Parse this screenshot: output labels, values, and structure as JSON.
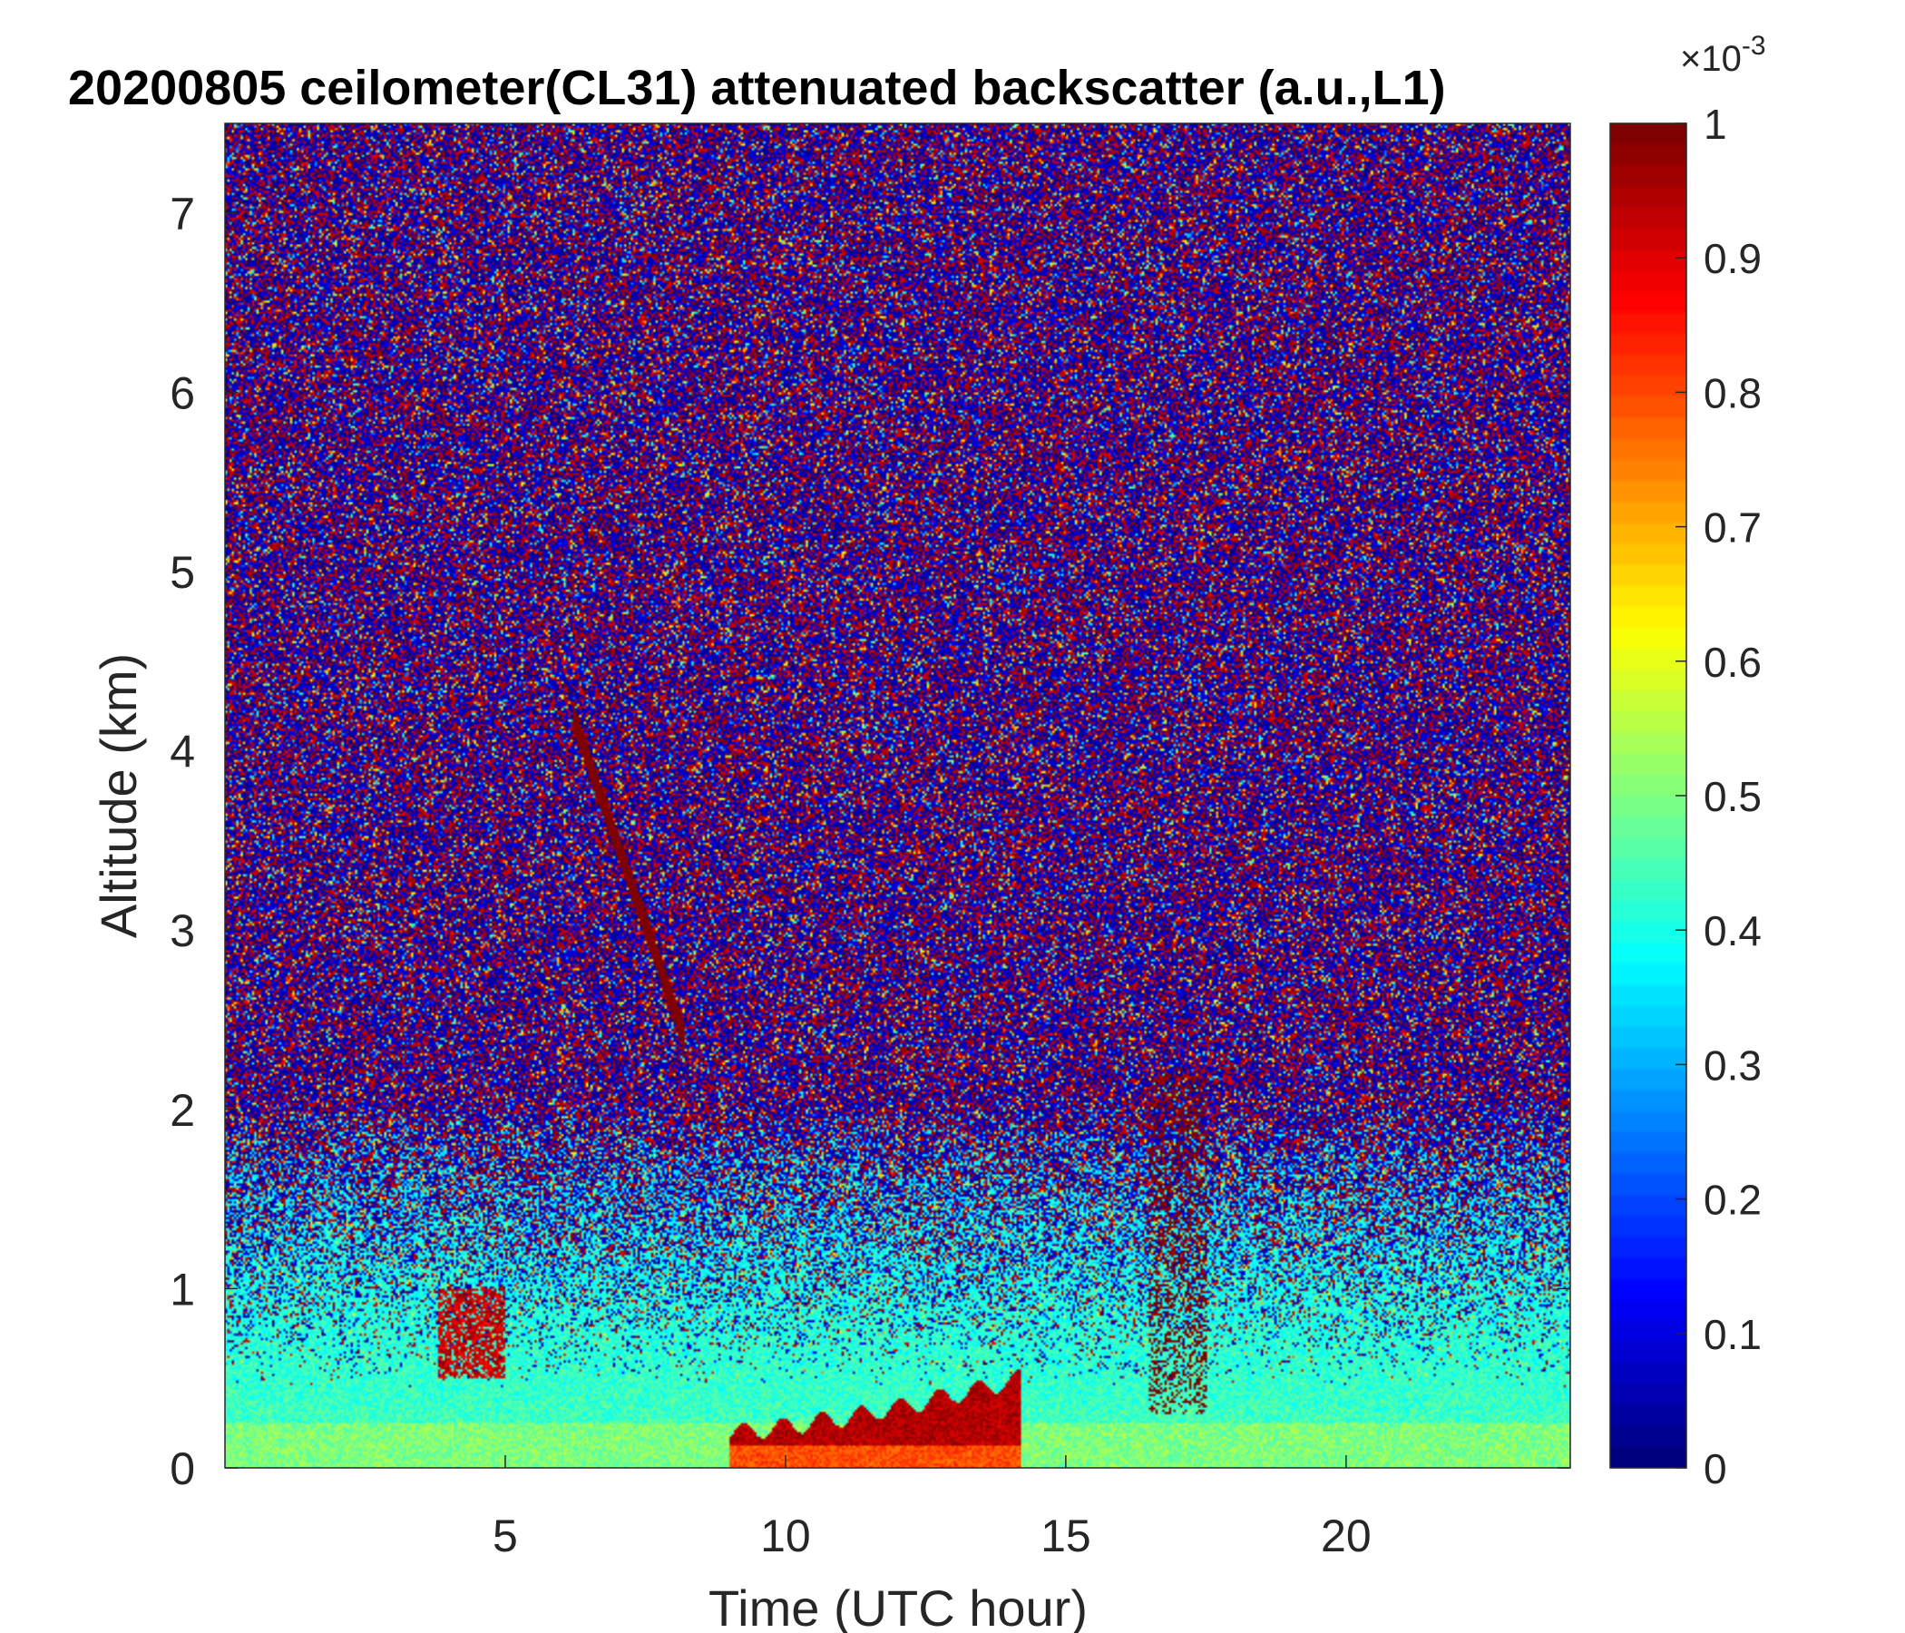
{
  "chart_data": {
    "type": "heatmap",
    "title": "20200805 ceilometer(CL31) attenuated backscatter (a.u.,L1)",
    "xlabel": "Time (UTC hour)",
    "ylabel": "Altitude (km)",
    "xlim": [
      0,
      24
    ],
    "ylim": [
      0,
      7.5
    ],
    "xticks": [
      5,
      10,
      15,
      20
    ],
    "yticks": [
      0,
      1,
      2,
      3,
      4,
      5,
      6,
      7
    ],
    "colorbar": {
      "colormap": "jet",
      "clim": [
        0,
        1
      ],
      "exponent_label": "×10",
      "exponent_power": "-3",
      "ticks": [
        0,
        0.1,
        0.2,
        0.3,
        0.4,
        0.5,
        0.6,
        0.7,
        0.8,
        0.9,
        1
      ],
      "tick_labels": [
        "0",
        "0.1",
        "0.2",
        "0.3",
        "0.4",
        "0.5",
        "0.6",
        "0.7",
        "0.8",
        "0.9",
        "1"
      ]
    },
    "grid": false,
    "features": [
      {
        "kind": "noise_background",
        "altitude_range_km": [
          2,
          7.5
        ],
        "value_range": [
          0,
          1
        ]
      },
      {
        "kind": "boundary_layer",
        "altitude_range_km": [
          0,
          0.6
        ],
        "value": 0.45
      },
      {
        "kind": "strong_layer",
        "time_range_h": [
          9,
          14.2
        ],
        "altitude_range_km": [
          0,
          0.55
        ],
        "value": 0.9
      },
      {
        "kind": "cloud_streak",
        "time_range_h": [
          6.2,
          8.2
        ],
        "altitude_range_km": [
          2.4,
          4.2
        ],
        "value": 1
      },
      {
        "kind": "cloud_patch",
        "time_range_h": [
          3.8,
          5
        ],
        "altitude_range_km": [
          0.5,
          1.0
        ],
        "value": 1
      },
      {
        "kind": "precip_streaks",
        "time_range_h": [
          16.5,
          17.5
        ],
        "altitude_range_km": [
          0.3,
          2.2
        ],
        "value": 1
      }
    ]
  }
}
